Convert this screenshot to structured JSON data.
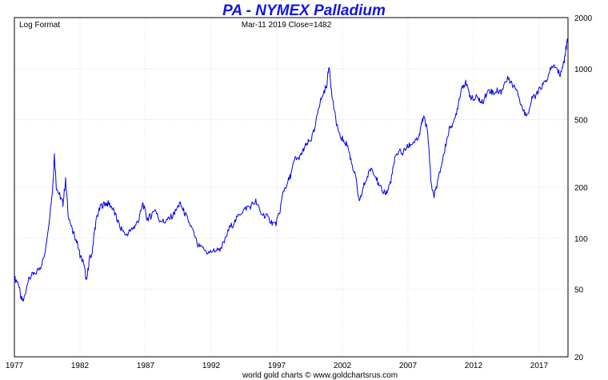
{
  "chart_data": {
    "type": "line",
    "title": "PA  -  NYMEX Palladium",
    "subtitle_left": "Log Format",
    "subtitle_center": "Mar-11  2019   Close=1482",
    "footer": "world gold charts © www.goldchartsrus.com",
    "scale": "log",
    "ylim": [
      20,
      2000
    ],
    "xlim": [
      1977.0,
      2019.2
    ],
    "y_ticks": [
      2000,
      1000,
      500,
      200,
      100,
      50,
      20
    ],
    "x_ticks": [
      1977,
      1982,
      1987,
      1992,
      1997,
      2002,
      2007,
      2012,
      2017
    ],
    "line_color": "#0000ee",
    "grid": true,
    "series": [
      {
        "values": [
          [
            1977.0,
            58
          ],
          [
            1977.3,
            55
          ],
          [
            1977.5,
            44
          ],
          [
            1977.7,
            43
          ],
          [
            1978.0,
            55
          ],
          [
            1978.3,
            60
          ],
          [
            1978.6,
            62
          ],
          [
            1979.0,
            68
          ],
          [
            1979.3,
            80
          ],
          [
            1979.6,
            120
          ],
          [
            1979.9,
            190
          ],
          [
            1980.05,
            310
          ],
          [
            1980.2,
            200
          ],
          [
            1980.5,
            175
          ],
          [
            1980.7,
            160
          ],
          [
            1980.9,
            220
          ],
          [
            1981.1,
            140
          ],
          [
            1981.4,
            110
          ],
          [
            1981.7,
            100
          ],
          [
            1982.0,
            80
          ],
          [
            1982.3,
            70
          ],
          [
            1982.5,
            55
          ],
          [
            1982.7,
            75
          ],
          [
            1982.9,
            80
          ],
          [
            1983.1,
            110
          ],
          [
            1983.3,
            135
          ],
          [
            1983.6,
            155
          ],
          [
            1983.9,
            160
          ],
          [
            1984.2,
            160
          ],
          [
            1984.5,
            150
          ],
          [
            1984.8,
            130
          ],
          [
            1985.1,
            115
          ],
          [
            1985.5,
            105
          ],
          [
            1985.9,
            112
          ],
          [
            1986.2,
            118
          ],
          [
            1986.5,
            130
          ],
          [
            1986.8,
            160
          ],
          [
            1987.1,
            130
          ],
          [
            1987.4,
            135
          ],
          [
            1987.7,
            150
          ],
          [
            1988.0,
            130
          ],
          [
            1988.4,
            125
          ],
          [
            1988.8,
            130
          ],
          [
            1989.2,
            140
          ],
          [
            1989.6,
            160
          ],
          [
            1989.9,
            145
          ],
          [
            1990.2,
            130
          ],
          [
            1990.6,
            110
          ],
          [
            1991.0,
            90
          ],
          [
            1991.4,
            86
          ],
          [
            1991.8,
            82
          ],
          [
            1992.2,
            85
          ],
          [
            1992.6,
            85
          ],
          [
            1993.0,
            95
          ],
          [
            1993.4,
            115
          ],
          [
            1993.8,
            125
          ],
          [
            1994.2,
            140
          ],
          [
            1994.6,
            150
          ],
          [
            1995.0,
            155
          ],
          [
            1995.4,
            165
          ],
          [
            1995.8,
            140
          ],
          [
            1996.2,
            135
          ],
          [
            1996.6,
            125
          ],
          [
            1996.9,
            120
          ],
          [
            1997.2,
            140
          ],
          [
            1997.5,
            190
          ],
          [
            1997.8,
            210
          ],
          [
            1998.1,
            240
          ],
          [
            1998.4,
            300
          ],
          [
            1998.7,
            290
          ],
          [
            1999.0,
            330
          ],
          [
            1999.3,
            360
          ],
          [
            1999.6,
            380
          ],
          [
            1999.9,
            440
          ],
          [
            2000.2,
            600
          ],
          [
            2000.5,
            700
          ],
          [
            2000.8,
            800
          ],
          [
            2001.0,
            1050
          ],
          [
            2001.2,
            700
          ],
          [
            2001.5,
            500
          ],
          [
            2001.8,
            400
          ],
          [
            2002.1,
            380
          ],
          [
            2002.4,
            350
          ],
          [
            2002.7,
            280
          ],
          [
            2003.0,
            230
          ],
          [
            2003.3,
            160
          ],
          [
            2003.6,
            200
          ],
          [
            2003.9,
            230
          ],
          [
            2004.2,
            260
          ],
          [
            2004.5,
            240
          ],
          [
            2004.8,
            200
          ],
          [
            2005.1,
            190
          ],
          [
            2005.4,
            185
          ],
          [
            2005.7,
            220
          ],
          [
            2006.0,
            290
          ],
          [
            2006.3,
            330
          ],
          [
            2006.6,
            320
          ],
          [
            2006.9,
            340
          ],
          [
            2007.2,
            360
          ],
          [
            2007.5,
            370
          ],
          [
            2007.8,
            380
          ],
          [
            2008.0,
            450
          ],
          [
            2008.2,
            540
          ],
          [
            2008.5,
            420
          ],
          [
            2008.8,
            200
          ],
          [
            2009.0,
            180
          ],
          [
            2009.3,
            220
          ],
          [
            2009.6,
            280
          ],
          [
            2009.9,
            360
          ],
          [
            2010.2,
            460
          ],
          [
            2010.5,
            480
          ],
          [
            2010.8,
            600
          ],
          [
            2011.1,
            790
          ],
          [
            2011.4,
            820
          ],
          [
            2011.7,
            700
          ],
          [
            2012.0,
            650
          ],
          [
            2012.3,
            690
          ],
          [
            2012.6,
            620
          ],
          [
            2012.9,
            690
          ],
          [
            2013.2,
            750
          ],
          [
            2013.5,
            720
          ],
          [
            2013.8,
            740
          ],
          [
            2014.1,
            730
          ],
          [
            2014.4,
            830
          ],
          [
            2014.7,
            880
          ],
          [
            2015.0,
            800
          ],
          [
            2015.3,
            770
          ],
          [
            2015.6,
            620
          ],
          [
            2015.9,
            540
          ],
          [
            2016.2,
            560
          ],
          [
            2016.5,
            680
          ],
          [
            2016.8,
            700
          ],
          [
            2017.1,
            770
          ],
          [
            2017.4,
            820
          ],
          [
            2017.7,
            900
          ],
          [
            2018.0,
            1050
          ],
          [
            2018.3,
            1000
          ],
          [
            2018.6,
            920
          ],
          [
            2018.9,
            1100
          ],
          [
            2019.0,
            1250
          ],
          [
            2019.1,
            1400
          ],
          [
            2019.19,
            1482
          ]
        ]
      }
    ]
  }
}
